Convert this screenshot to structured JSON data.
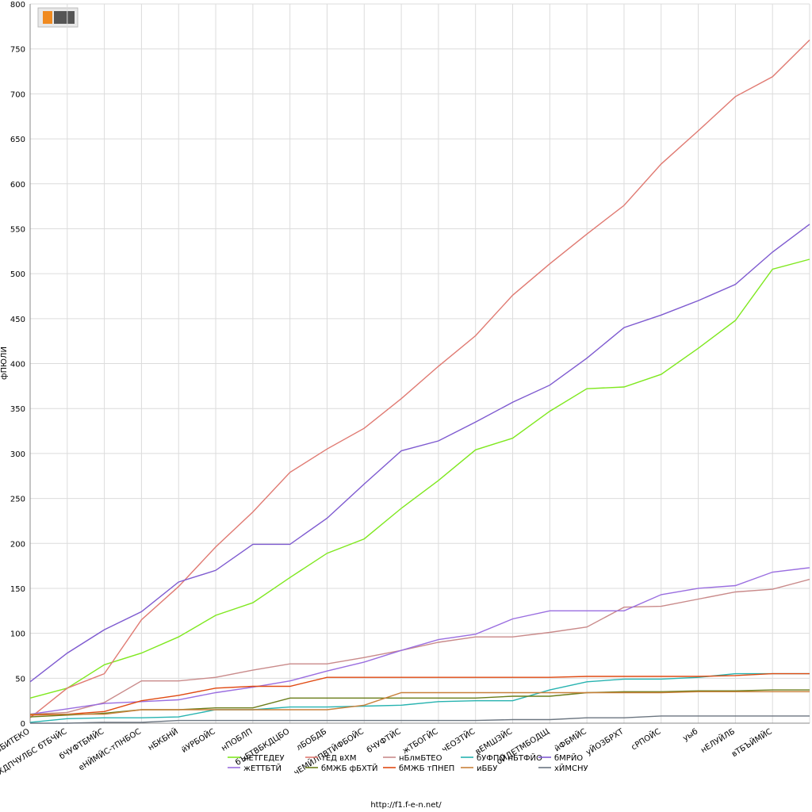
{
  "chart_data": {
    "type": "line",
    "y_label": "фПЮЛЙ",
    "footer": "http://f1.f-e-n.net/",
    "categories": [
      "вБИТЕКО",
      "уБХДПЧУЛБС бТБЧЙС",
      "бЧУФТБМЙС",
      "еНЙМЙС-тПНБОС",
      "нБКБНЙ",
      "йУРБОЙС",
      "нПОБЛП",
      "бЪЕТВБКДЦБО",
      "лБОБДБ",
      "чЕМЙЛПВТЙФБОЙС",
      "бЧУФТЙС",
      "жТБОГЙС",
      "чЕОЗТЙС",
      "вЕМШЗЙС",
      "оЙДЕТМБОДЩ",
      "йФБМЙС",
      "уЙОЗБРХТ",
      "сРПОЙС",
      "уыб",
      "нЕЛУЙЛБ",
      "вТБЪЙМЙС",
      null
    ],
    "ylim": [
      0,
      800
    ],
    "yticks": [
      0,
      50,
      100,
      150,
      200,
      250,
      300,
      350,
      400,
      450,
      500,
      550,
      600,
      650,
      700,
      750,
      800
    ],
    "grid": true,
    "legend": "bottom",
    "series": [
      {
        "name": "нЕТГЕДЕУ",
        "color": "#7fe81f",
        "values": [
          28,
          39,
          65,
          78,
          96,
          120,
          134,
          162,
          189,
          205,
          239,
          270,
          304,
          317,
          347,
          372,
          374,
          388,
          417,
          448,
          505,
          516
        ]
      },
      {
        "name": "тЕД вХМ",
        "color": "#e07a72",
        "values": [
          6,
          39,
          55,
          115,
          152,
          196,
          235,
          279,
          305,
          328,
          361,
          397,
          431,
          476,
          511,
          544,
          576,
          622,
          659,
          697,
          719,
          760
        ]
      },
      {
        "name": "нБлмБТЕО",
        "color": "#c98a8a",
        "values": [
          10,
          12,
          23,
          47,
          47,
          51,
          59,
          66,
          66,
          73,
          81,
          90,
          96,
          96,
          101,
          107,
          129,
          130,
          138,
          146,
          149,
          160
        ]
      },
      {
        "name": "бУФПО нБТФЙО",
        "color": "#27b3b0",
        "values": [
          1,
          5,
          6,
          6,
          7,
          15,
          15,
          18,
          18,
          19,
          20,
          24,
          25,
          25,
          37,
          46,
          49,
          49,
          51,
          55,
          55,
          55
        ]
      },
      {
        "name": "бМРЙО",
        "color": "#7e5ad0",
        "values": [
          46,
          78,
          104,
          124,
          157,
          170,
          199,
          199,
          228,
          266,
          303,
          314,
          335,
          357,
          376,
          406,
          440,
          454,
          470,
          488,
          524,
          555
        ]
      },
      {
        "name": "жЕТТБТЙ",
        "color": "#9a6ee0",
        "values": [
          10,
          16,
          22,
          24,
          26,
          34,
          40,
          47,
          58,
          68,
          81,
          93,
          99,
          116,
          125,
          125,
          125,
          143,
          150,
          153,
          168,
          173
        ]
      },
      {
        "name": "бМЖБ фБХТЙ",
        "color": "#6a7d1a",
        "values": [
          7,
          9,
          11,
          15,
          15,
          17,
          17,
          28,
          28,
          28,
          28,
          28,
          28,
          30,
          30,
          34,
          35,
          35,
          36,
          36,
          37,
          37
        ]
      },
      {
        "name": "бМЖБ тПНЕП",
        "color": "#e04a12",
        "values": [
          9,
          10,
          13,
          25,
          31,
          39,
          41,
          41,
          51,
          51,
          51,
          51,
          51,
          51,
          51,
          52,
          52,
          52,
          52,
          53,
          55,
          55
        ]
      },
      {
        "name": "иББУ",
        "color": "#c8803a",
        "values": [
          10,
          10,
          10,
          15,
          15,
          15,
          15,
          15,
          15,
          20,
          34,
          34,
          34,
          34,
          34,
          34,
          34,
          34,
          35,
          35,
          35,
          35
        ]
      },
      {
        "name": "хЙМСНУ",
        "color": "#6b7580",
        "values": [
          0,
          0,
          1,
          1,
          3,
          3,
          3,
          3,
          3,
          3,
          3,
          3,
          3,
          4,
          4,
          6,
          6,
          8,
          8,
          8,
          8,
          8
        ]
      }
    ]
  }
}
